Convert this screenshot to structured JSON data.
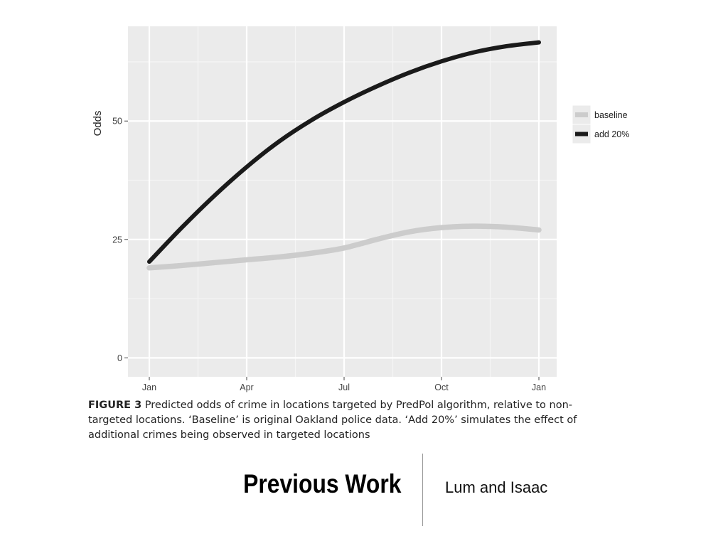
{
  "chart_data": {
    "type": "line",
    "ylabel": "Odds",
    "xlabel": "",
    "x_ticks": [
      "Jan",
      "Apr",
      "Jul",
      "Oct",
      "Jan"
    ],
    "x_range": [
      0,
      12
    ],
    "ylim": [
      -4,
      70
    ],
    "y_ticks": [
      0,
      25,
      50
    ],
    "grid": true,
    "legend_position": "right",
    "series": [
      {
        "name": "baseline",
        "color": "#cccccc",
        "x": [
          0,
          1,
          2,
          3,
          4,
          5,
          6,
          7,
          8,
          9,
          10,
          11,
          12
        ],
        "y": [
          19.0,
          19.5,
          20.1,
          20.7,
          21.3,
          22.1,
          23.2,
          25.0,
          26.6,
          27.5,
          27.8,
          27.6,
          27.0
        ]
      },
      {
        "name": "add 20%",
        "color": "#1a1a1a",
        "x": [
          0,
          1,
          2,
          3,
          4,
          5,
          6,
          7,
          8,
          9,
          10,
          11,
          12
        ],
        "y": [
          20.3,
          27.5,
          34.2,
          40.3,
          45.7,
          50.2,
          54.0,
          57.3,
          60.2,
          62.6,
          64.5,
          65.8,
          66.6
        ]
      }
    ]
  },
  "caption": {
    "label": "FIGURE 3",
    "text": " Predicted odds of crime in locations targeted by PredPol algorithm, relative to non-targeted locations. ‘Baseline’ is original Oakland police data. ‘Add 20%’ simulates the effect of additional crimes being observed in targeted locations"
  },
  "footer": {
    "title": "Previous Work",
    "subtitle": "Lum and Isaac"
  }
}
